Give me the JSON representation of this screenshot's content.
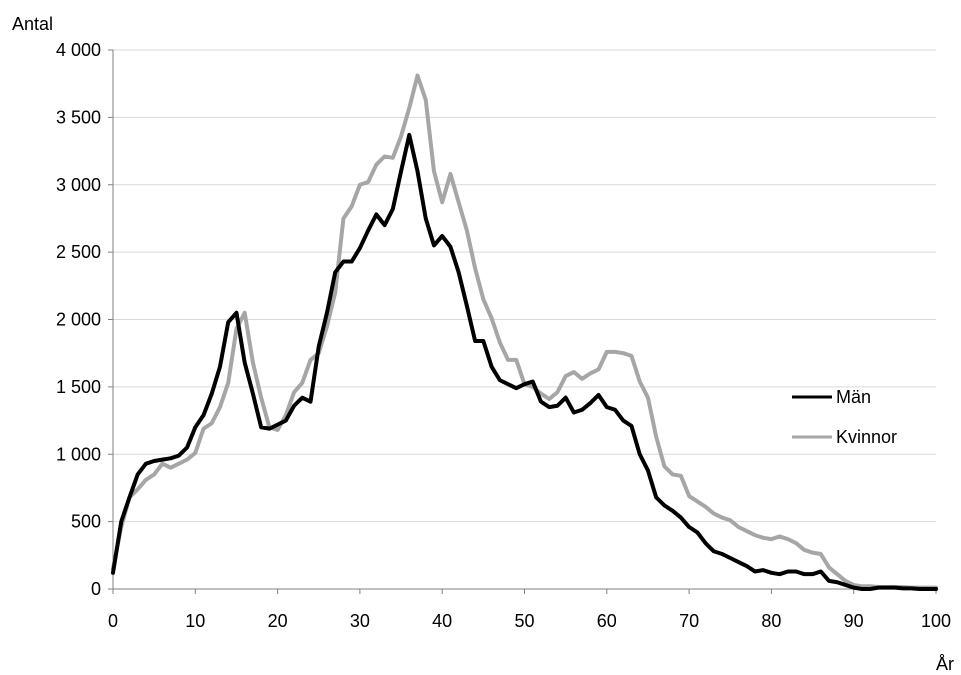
{
  "chart_data": {
    "type": "line",
    "title": "",
    "xlabel": "År",
    "ylabel": "Antal",
    "xlim": [
      0,
      100
    ],
    "ylim": [
      0,
      4000
    ],
    "x_ticks": [
      0,
      10,
      20,
      30,
      40,
      50,
      60,
      70,
      80,
      90,
      100
    ],
    "x_tick_labels": [
      "0",
      "10",
      "20",
      "30",
      "40",
      "50",
      "60",
      "70",
      "80",
      "90",
      "100"
    ],
    "y_ticks": [
      0,
      500,
      1000,
      1500,
      2000,
      2500,
      3000,
      3500,
      4000
    ],
    "y_tick_labels": [
      "0",
      "500",
      "1 000",
      "1 500",
      "2 000",
      "2 500",
      "3 000",
      "3 500",
      "4 000"
    ],
    "grid": "horizontal",
    "legend_position": "right",
    "x": [
      0,
      1,
      2,
      3,
      4,
      5,
      6,
      7,
      8,
      9,
      10,
      11,
      12,
      13,
      14,
      15,
      16,
      17,
      18,
      19,
      20,
      21,
      22,
      23,
      24,
      25,
      26,
      27,
      28,
      29,
      30,
      31,
      32,
      33,
      34,
      35,
      36,
      37,
      38,
      39,
      40,
      41,
      42,
      43,
      44,
      45,
      46,
      47,
      48,
      49,
      50,
      51,
      52,
      53,
      54,
      55,
      56,
      57,
      58,
      59,
      60,
      61,
      62,
      63,
      64,
      65,
      66,
      67,
      68,
      69,
      70,
      71,
      72,
      73,
      74,
      75,
      76,
      77,
      78,
      79,
      80,
      81,
      82,
      83,
      84,
      85,
      86,
      87,
      88,
      89,
      90,
      91,
      92,
      93,
      94,
      95,
      96,
      97,
      98,
      99,
      100
    ],
    "series": [
      {
        "name": "Män",
        "color": "#000000",
        "values": [
          120,
          500,
          680,
          850,
          930,
          950,
          960,
          970,
          990,
          1050,
          1200,
          1290,
          1450,
          1650,
          1980,
          2050,
          1680,
          1450,
          1200,
          1190,
          1220,
          1250,
          1360,
          1420,
          1390,
          1800,
          2050,
          2350,
          2430,
          2430,
          2530,
          2660,
          2780,
          2700,
          2820,
          3100,
          3370,
          3100,
          2750,
          2550,
          2620,
          2540,
          2350,
          2100,
          1840,
          1840,
          1650,
          1550,
          1520,
          1490,
          1520,
          1540,
          1390,
          1350,
          1360,
          1420,
          1310,
          1330,
          1380,
          1440,
          1350,
          1330,
          1250,
          1210,
          1000,
          880,
          680,
          620,
          580,
          530,
          460,
          420,
          340,
          280,
          260,
          230,
          200,
          170,
          130,
          140,
          120,
          110,
          130,
          130,
          110,
          110,
          130,
          60,
          50,
          30,
          10,
          0,
          0,
          10,
          10,
          10,
          5,
          5,
          0,
          0,
          0
        ]
      },
      {
        "name": "Kvinnor",
        "color": "#a6a6a6",
        "values": [
          150,
          460,
          680,
          740,
          810,
          850,
          930,
          900,
          930,
          960,
          1010,
          1190,
          1230,
          1350,
          1530,
          1930,
          2050,
          1680,
          1420,
          1200,
          1180,
          1290,
          1460,
          1530,
          1700,
          1750,
          1950,
          2200,
          2750,
          2840,
          3000,
          3020,
          3150,
          3210,
          3200,
          3360,
          3570,
          3810,
          3630,
          3100,
          2870,
          3080,
          2870,
          2660,
          2380,
          2150,
          2010,
          1830,
          1700,
          1700,
          1520,
          1500,
          1450,
          1410,
          1460,
          1580,
          1610,
          1560,
          1600,
          1630,
          1760,
          1760,
          1750,
          1730,
          1540,
          1420,
          1130,
          910,
          850,
          840,
          690,
          650,
          610,
          560,
          530,
          510,
          460,
          430,
          400,
          380,
          370,
          390,
          370,
          340,
          290,
          270,
          260,
          160,
          110,
          60,
          30,
          20,
          20,
          15,
          15,
          15,
          15,
          10,
          10,
          10,
          10
        ]
      }
    ]
  }
}
